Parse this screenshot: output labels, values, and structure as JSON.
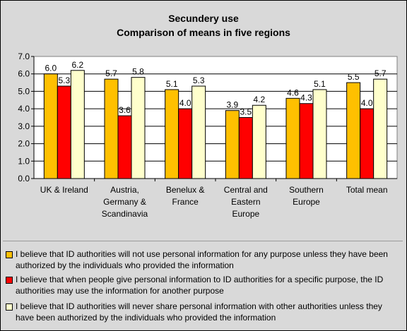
{
  "title": "Secundery use",
  "subtitle": "Comparison of means in five regions",
  "chart_data": {
    "type": "bar",
    "title": "Secundery use",
    "subtitle": "Comparison of means in five regions",
    "categories": [
      [
        "UK & Ireland"
      ],
      [
        "Austria,",
        "Germany &",
        "Scandinavia"
      ],
      [
        "Benelux &",
        "France"
      ],
      [
        "Central and",
        "Eastern",
        "Europe"
      ],
      [
        "Southern",
        "Europe"
      ],
      [
        "Total mean"
      ]
    ],
    "series": [
      {
        "name": "I believe that ID authorities will not use personal information for any purpose unless they have been authorized by the individuals who provided the information",
        "color": "#FFC000",
        "values": [
          6.0,
          5.7,
          5.1,
          3.9,
          4.6,
          5.5
        ]
      },
      {
        "name": "I believe that when people give personal information to ID authorities for a specific purpose, the ID authorities may use the information for another purpose",
        "color": "#FF0000",
        "values": [
          5.3,
          3.6,
          4.0,
          3.5,
          4.3,
          4.0
        ]
      },
      {
        "name": "I believe that ID authorities will never share personal information with other authorities unless they have been authorized by the individuals who provided the information",
        "color": "#FFFFCC",
        "values": [
          6.2,
          5.8,
          5.3,
          4.2,
          5.1,
          5.7
        ]
      }
    ],
    "ylim": [
      0,
      7
    ],
    "yticks": [
      "0.0",
      "1.0",
      "2.0",
      "3.0",
      "4.0",
      "5.0",
      "6.0",
      "7.0"
    ],
    "grid": true,
    "legend_position": "bottom",
    "plot_background": "#FFFFFF",
    "chart_background": "#D9D9D9"
  }
}
